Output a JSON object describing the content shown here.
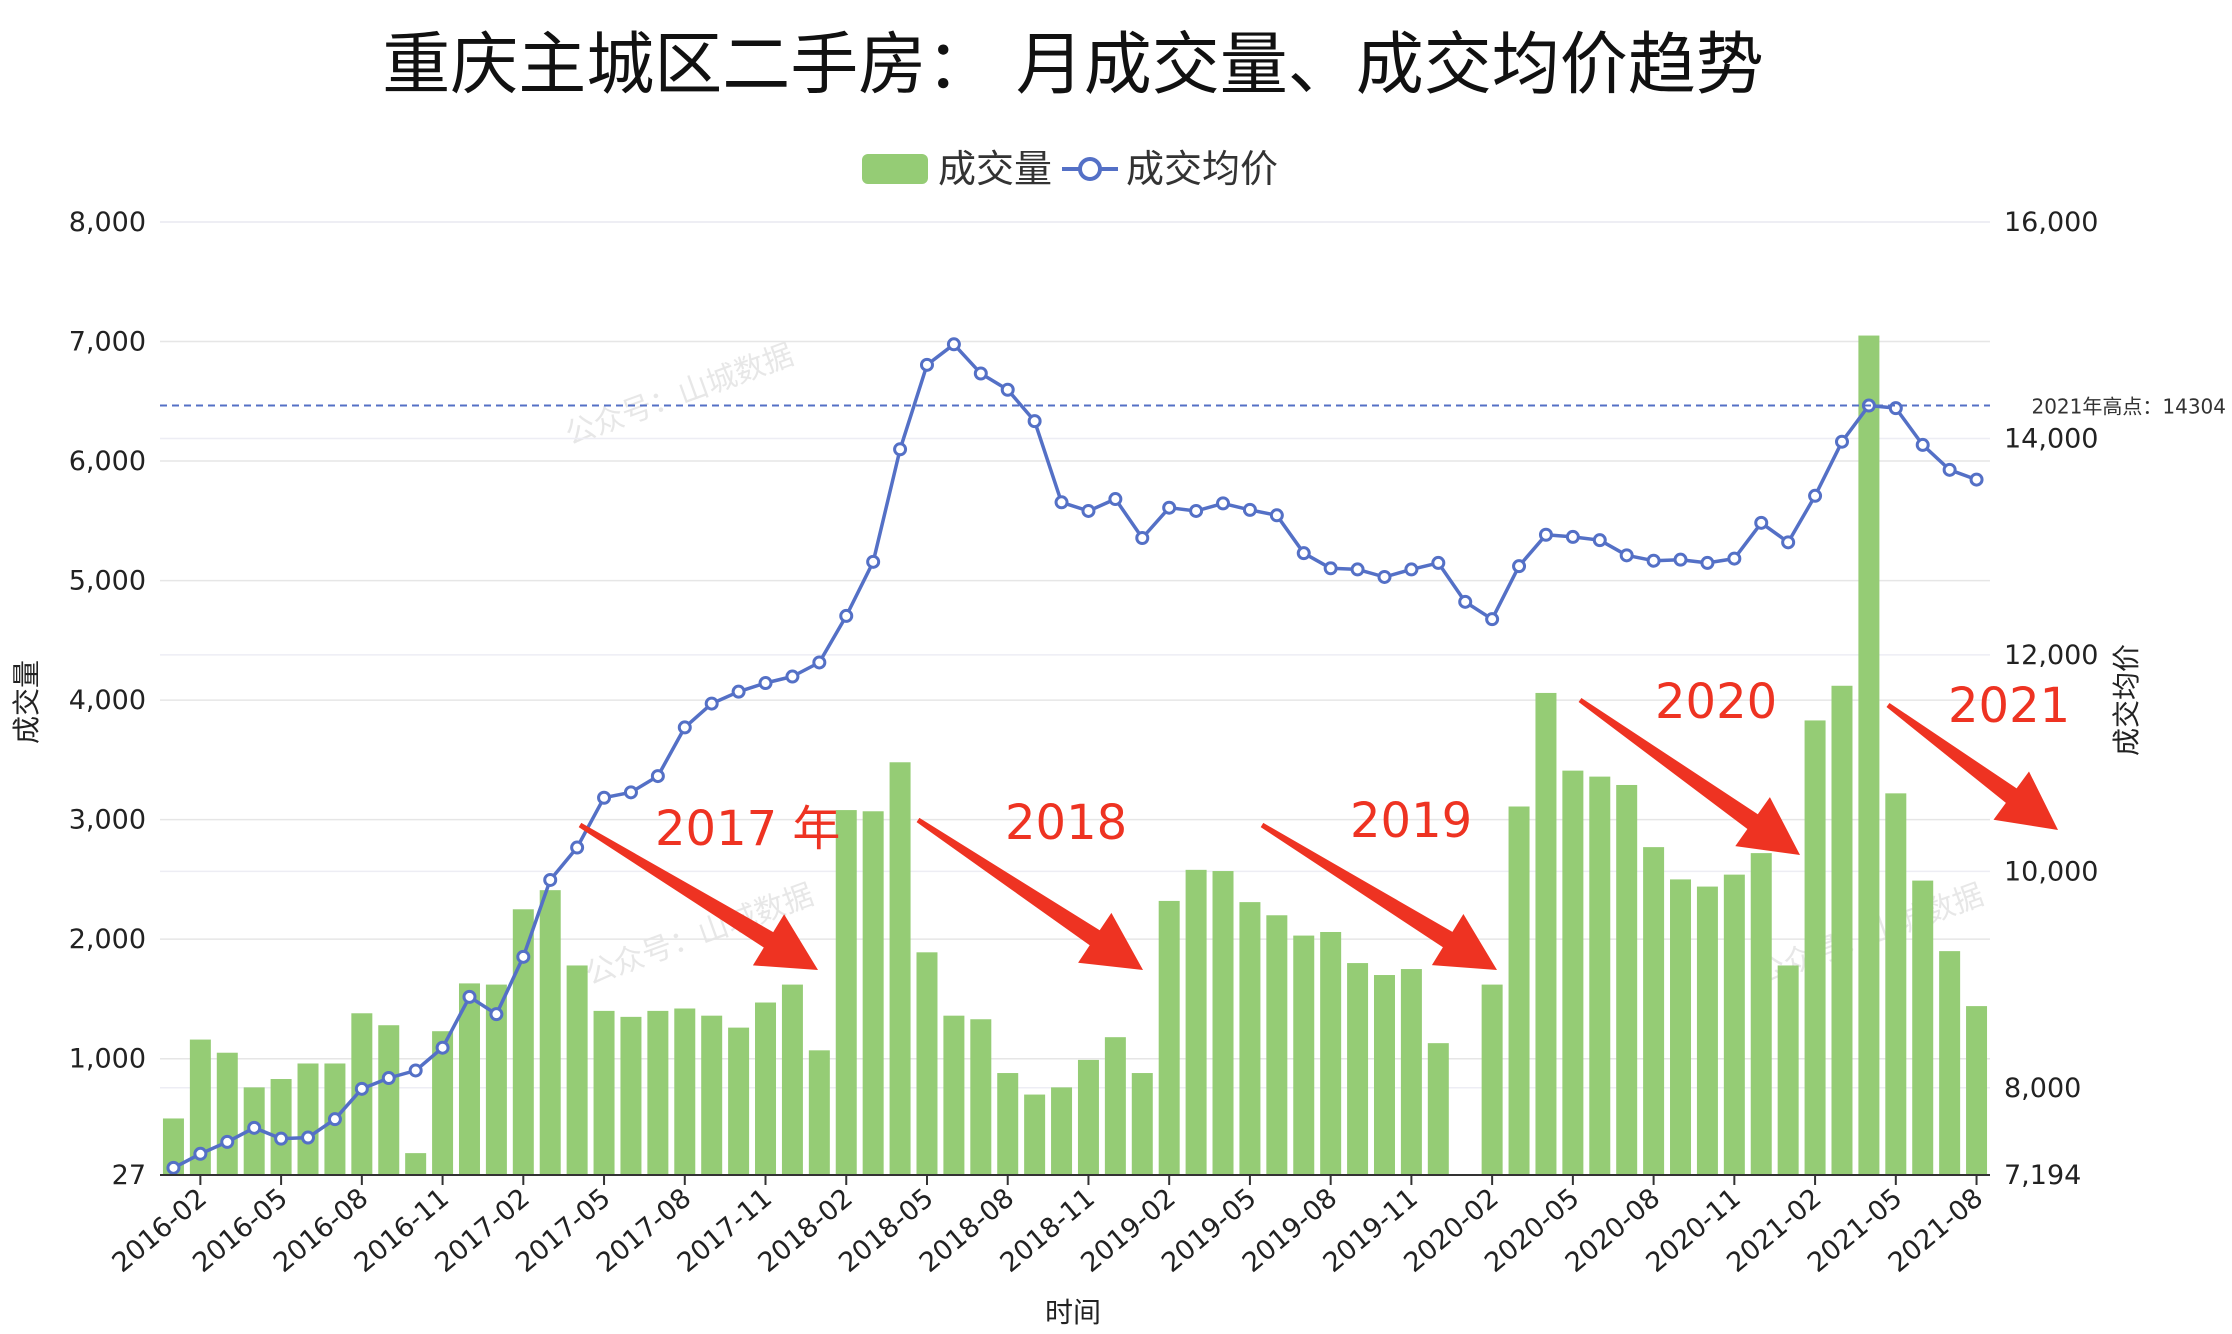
{
  "chart_data": {
    "type": "bar+line",
    "title": "重庆主城区二手房： 月成交量、成交均价趋势",
    "xlabel": "时间",
    "ylabel_left": "成交量",
    "ylabel_right": "成交均价",
    "legend": [
      "成交量",
      "成交均价"
    ],
    "legend_position": "top-center",
    "grid": true,
    "x_ticks": [
      "2016-02",
      "2016-05",
      "2016-08",
      "2016-11",
      "2017-02",
      "2017-05",
      "2017-08",
      "2017-11",
      "2018-02",
      "2018-05",
      "2018-08",
      "2018-11",
      "2019-02",
      "2019-05",
      "2019-08",
      "2019-11",
      "2020-02",
      "2020-05",
      "2020-08",
      "2020-11",
      "2021-02",
      "2021-05",
      "2021-08"
    ],
    "y_left_ticks": [
      "8,000",
      "7,000",
      "6,000",
      "5,000",
      "4,000",
      "3,000",
      "2,000",
      "1,000",
      "27"
    ],
    "y_right_ticks": [
      "16,000",
      "14,000",
      "12,000",
      "10,000",
      "8,000",
      "7,194"
    ],
    "ylim_left": [
      27,
      8000
    ],
    "ylim_right": [
      7194,
      16000
    ],
    "categories": [
      "2016-01",
      "2016-02",
      "2016-03",
      "2016-04",
      "2016-05",
      "2016-06",
      "2016-07",
      "2016-08",
      "2016-09",
      "2016-10",
      "2016-11",
      "2016-12",
      "2017-01",
      "2017-02",
      "2017-03",
      "2017-04",
      "2017-05",
      "2017-06",
      "2017-07",
      "2017-08",
      "2017-09",
      "2017-10",
      "2017-11",
      "2017-12",
      "2018-01",
      "2018-02",
      "2018-03",
      "2018-04",
      "2018-05",
      "2018-06",
      "2018-07",
      "2018-08",
      "2018-09",
      "2018-10",
      "2018-11",
      "2018-12",
      "2019-01",
      "2019-02",
      "2019-03",
      "2019-04",
      "2019-05",
      "2019-06",
      "2019-07",
      "2019-08",
      "2019-09",
      "2019-10",
      "2019-11",
      "2019-12",
      "2020-01",
      "2020-02",
      "2020-03",
      "2020-04",
      "2020-05",
      "2020-06",
      "2020-07",
      "2020-08",
      "2020-09",
      "2020-10",
      "2020-11",
      "2020-12",
      "2021-01",
      "2021-02",
      "2021-03",
      "2021-04",
      "2021-05",
      "2021-06",
      "2021-07",
      "2021-08"
    ],
    "series": [
      {
        "name": "成交量",
        "type": "bar",
        "color": "#95cc75",
        "values": [
          500,
          1160,
          1050,
          760,
          830,
          960,
          960,
          1380,
          1280,
          210,
          1230,
          1630,
          1620,
          2250,
          2410,
          1780,
          1400,
          1350,
          1400,
          1420,
          1360,
          1260,
          1470,
          1620,
          1070,
          3080,
          3070,
          3480,
          1890,
          1360,
          1330,
          880,
          700,
          760,
          990,
          1180,
          880,
          2320,
          2580,
          2570,
          2310,
          2200,
          2030,
          2060,
          1800,
          1700,
          1750,
          1130,
          27,
          1620,
          3110,
          4060,
          3410,
          3360,
          3290,
          2770,
          2500,
          2440,
          2540,
          2720,
          1780,
          3830,
          4120,
          7050,
          3220,
          2490,
          1900,
          1440
        ]
      },
      {
        "name": "成交均价",
        "type": "line",
        "color": "#5470c6",
        "values": [
          7260,
          7390,
          7500,
          7630,
          7530,
          7540,
          7710,
          7990,
          8090,
          8160,
          8370,
          8840,
          8680,
          9210,
          9920,
          10220,
          10680,
          10730,
          10880,
          11330,
          11550,
          11660,
          11740,
          11800,
          11930,
          12360,
          12860,
          13900,
          14680,
          14870,
          14600,
          14450,
          14160,
          13410,
          13330,
          13440,
          13080,
          13360,
          13330,
          13400,
          13340,
          13290,
          12940,
          12800,
          12790,
          12720,
          12790,
          12850,
          12490,
          12330,
          12820,
          13110,
          13090,
          13060,
          12920,
          12870,
          12880,
          12850,
          12890,
          13220,
          13040,
          13470,
          13970,
          14304,
          14280,
          13940,
          13710,
          13620
        ]
      }
    ],
    "markline": {
      "value": 14304,
      "label": "2021年高点：14304"
    },
    "annotations": [
      "2017 年",
      "2018",
      "2019",
      "2020",
      "2021"
    ],
    "watermark": "公众号：山城数据",
    "arrow_color": "#ee3322"
  }
}
